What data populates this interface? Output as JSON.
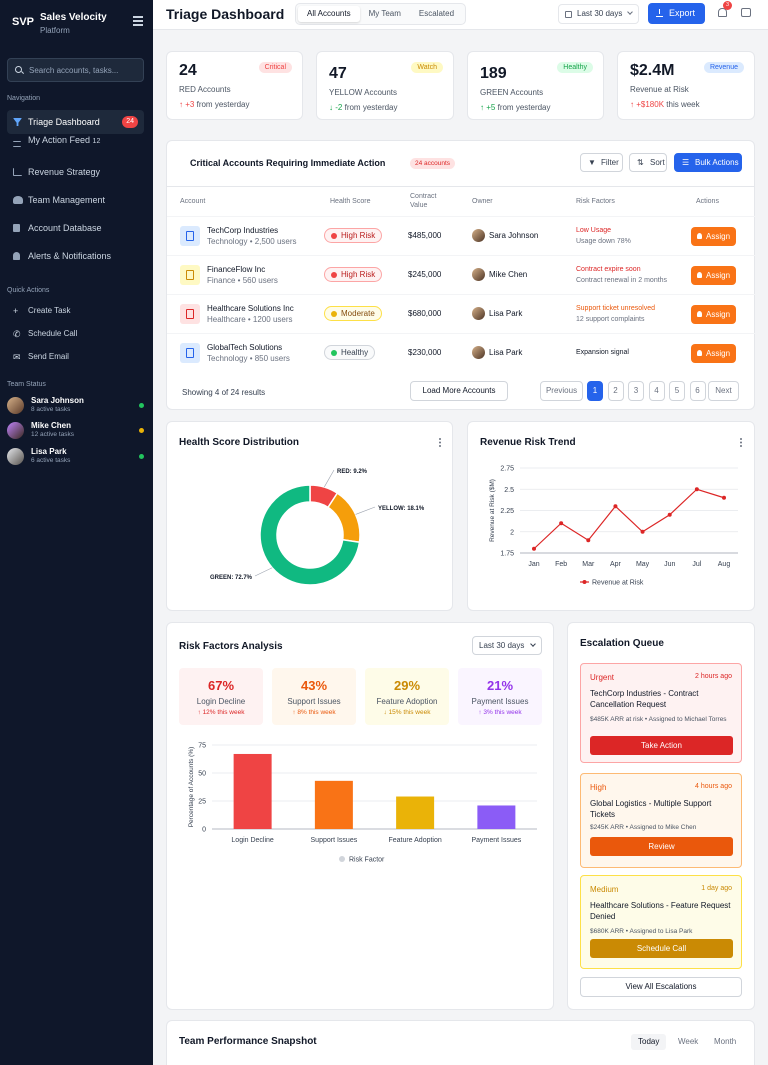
{
  "sidebar": {
    "logo": "SVP",
    "brand_name": "Sales Velocity",
    "brand_sub": "Platform",
    "search_placeholder": "Search accounts, tasks...",
    "nav_heading": "Navigation",
    "nav": [
      {
        "label": "Triage Dashboard",
        "badge": "24"
      },
      {
        "label": "My Action Feed",
        "badge": "12"
      },
      {
        "label": "Revenue Strategy"
      },
      {
        "label": "Team Management"
      },
      {
        "label": "Account Database"
      },
      {
        "label": "Alerts & Notifications"
      }
    ],
    "quick_heading": "Quick Actions",
    "quick": [
      {
        "label": "Create Task",
        "icon": "+"
      },
      {
        "label": "Schedule Call",
        "icon": "✆"
      },
      {
        "label": "Send Email",
        "icon": "✉"
      }
    ],
    "team_heading": "Team Status",
    "team": [
      {
        "name": "Sara Johnson",
        "tasks": "8 active tasks",
        "color": "#22c55e"
      },
      {
        "name": "Mike Chen",
        "tasks": "12 active tasks",
        "color": "#eab308"
      },
      {
        "name": "Lisa Park",
        "tasks": "6 active tasks",
        "color": "#22c55e"
      }
    ]
  },
  "header": {
    "title": "Triage Dashboard",
    "tabs": [
      "All Accounts",
      "My Team",
      "Escalated"
    ],
    "date_range": "Last 30 days",
    "export_label": "Export",
    "notif_count": "3"
  },
  "kpis": [
    {
      "value": "24",
      "label": "RED Accounts",
      "tag": "Critical",
      "delta_arrow": "↑",
      "delta": "+3",
      "delta_text": "from yesterday",
      "color": "#ef4444",
      "tag_bg": "#fee2e2"
    },
    {
      "value": "47",
      "label": "YELLOW Accounts",
      "tag": "Watch",
      "delta_arrow": "↓",
      "delta": "-2",
      "delta_text": "from yesterday",
      "color": "#ca8a04",
      "tag_bg": "#fef9c3",
      "delta_color": "#16a34a"
    },
    {
      "value": "189",
      "label": "GREEN Accounts",
      "tag": "Healthy",
      "delta_arrow": "↑",
      "delta": "+5",
      "delta_text": "from yesterday",
      "color": "#16a34a",
      "tag_bg": "#dcfce7"
    },
    {
      "value": "$2.4M",
      "label": "Revenue at Risk",
      "tag": "Revenue",
      "delta_arrow": "↑",
      "delta": "+$180K",
      "delta_text": "this week",
      "color": "#2563eb",
      "tag_bg": "#dbeafe",
      "delta_color": "#ef4444"
    }
  ],
  "critical": {
    "title": "Critical Accounts Requiring Immediate Action",
    "count_pill": "24 accounts",
    "filter_label": "Filter",
    "sort_label": "Sort",
    "bulk_label": "Bulk Actions",
    "columns": [
      "Account",
      "Health Score",
      "Contract Value",
      "Owner",
      "Risk Factors",
      "Actions"
    ],
    "rows": [
      {
        "name": "TechCorp Industries",
        "sub": "Technology • 2,500 users",
        "health": "High Risk",
        "value": "$485,000",
        "owner": "Sara Johnson",
        "risk1": "Low Usage",
        "risk2": "Usage down 78%",
        "risk_color": "#dc2626",
        "icon_bg": "#dbeafe",
        "icon_color": "#2563eb",
        "action": "Assign"
      },
      {
        "name": "FinanceFlow Inc",
        "sub": "Finance • 560 users",
        "health": "High Risk",
        "value": "$245,000",
        "owner": "Mike Chen",
        "risk1": "Contract expire soon",
        "risk2": "Contract renewal in 2 months",
        "risk_color": "#dc2626",
        "icon_bg": "#fef9c3",
        "icon_color": "#ca8a04",
        "action": "Assign"
      },
      {
        "name": "Healthcare Solutions Inc",
        "sub": "Healthcare • 1200 users",
        "health": "Moderate",
        "value": "$680,000",
        "owner": "Lisa Park",
        "risk1": "Support ticket unresolved",
        "risk2": "12 support complaints",
        "risk_color": "#ea580c",
        "icon_bg": "#fee2e2",
        "icon_color": "#dc2626",
        "action": "Assign"
      },
      {
        "name": "GlobalTech Solutions",
        "sub": "Technology • 850 users",
        "health": "Healthy",
        "value": "$230,000",
        "owner": "Lisa Park",
        "risk1": "Expansion signal",
        "risk2": "",
        "risk_color": "#111827",
        "icon_bg": "#dbeafe",
        "icon_color": "#2563eb",
        "action": "Assign"
      }
    ],
    "showing": "Showing 4 of 24 results",
    "load_more": "Load More Accounts",
    "pagination": [
      "Previous",
      "1",
      "2",
      "3",
      "4",
      "5",
      "6",
      "Next"
    ]
  },
  "health_chart": {
    "title": "Health Score Distribution",
    "chart_data": {
      "type": "pie",
      "slices": [
        {
          "label": "RED: 9.2%",
          "value": 9.2,
          "color": "#ef4444"
        },
        {
          "label": "YELLOW: 18.1%",
          "value": 18.1,
          "color": "#f59e0b"
        },
        {
          "label": "GREEN: 72.7%",
          "value": 72.7,
          "color": "#10b981"
        }
      ]
    }
  },
  "revenue_chart": {
    "title": "Revenue Risk Trend",
    "chart_data": {
      "type": "line",
      "categories": [
        "Jan",
        "Feb",
        "Mar",
        "Apr",
        "May",
        "Jun",
        "Jul",
        "Aug"
      ],
      "series": [
        {
          "name": "Revenue at Risk",
          "values": [
            1.8,
            2.1,
            1.9,
            2.3,
            2.0,
            2.2,
            2.5,
            2.4
          ]
        }
      ],
      "ylabel": "Revenue at Risk ($M)",
      "yticks": [
        "2.75",
        "2.5",
        "2.25",
        "2",
        "1.75"
      ],
      "ylim": [
        1.75,
        2.75
      ],
      "color": "#dc2626"
    }
  },
  "risk_factors": {
    "title": "Risk Factors Analysis",
    "range": "Last 30 days",
    "boxes": [
      {
        "pct": "67%",
        "label": "Login Decline",
        "trend": "↑ 12% this week",
        "color": "#dc2626",
        "bg": "#fef2f2"
      },
      {
        "pct": "43%",
        "label": "Support Issues",
        "trend": "↑ 8% this week",
        "color": "#ea580c",
        "bg": "#fff7ed"
      },
      {
        "pct": "29%",
        "label": "Feature Adoption",
        "trend": "↓ 15% this week",
        "color": "#ca8a04",
        "bg": "#fefce8"
      },
      {
        "pct": "21%",
        "label": "Payment Issues",
        "trend": "↑ 3% this week",
        "color": "#9333ea",
        "bg": "#faf5ff"
      }
    ],
    "chart_data": {
      "type": "bar",
      "categories": [
        "Login Decline",
        "Support Issues",
        "Feature Adoption",
        "Payment Issues"
      ],
      "values": [
        67,
        43,
        29,
        21
      ],
      "colors": [
        "#ef4444",
        "#f97316",
        "#eab308",
        "#8b5cf6"
      ],
      "ylabel": "Percentage of Accounts (%)",
      "yticks": [
        "75",
        "50",
        "25",
        "0"
      ],
      "ylim": [
        0,
        75
      ],
      "legend": "Risk Factor"
    }
  },
  "escalation": {
    "title": "Escalation Queue",
    "items": [
      {
        "level": "Urgent",
        "time": "2 hours ago",
        "title": "TechCorp Industries - Contract Cancellation Request",
        "meta": "$485K ARR at risk • Assigned to Michael Torres",
        "button": "Take Action",
        "color": "#dc2626",
        "bg": "#fef2f2",
        "border": "#fca5a5"
      },
      {
        "level": "High",
        "time": "4 hours ago",
        "title": "Global Logistics - Multiple Support Tickets",
        "meta": "$245K ARR • Assigned to Mike Chen",
        "button": "Review",
        "color": "#ea580c",
        "bg": "#fff7ed",
        "border": "#fdba74"
      },
      {
        "level": "Medium",
        "time": "1 day ago",
        "title": "Healthcare Solutions - Feature Request Denied",
        "meta": "$680K ARR • Assigned to Lisa Park",
        "button": "Schedule Call",
        "color": "#ca8a04",
        "bg": "#fefce8",
        "border": "#fde047"
      }
    ],
    "view_all": "View All Escalations"
  },
  "team_perf": {
    "title": "Team Performance Snapshot",
    "tabs": [
      "Today",
      "Week",
      "Month"
    ]
  }
}
